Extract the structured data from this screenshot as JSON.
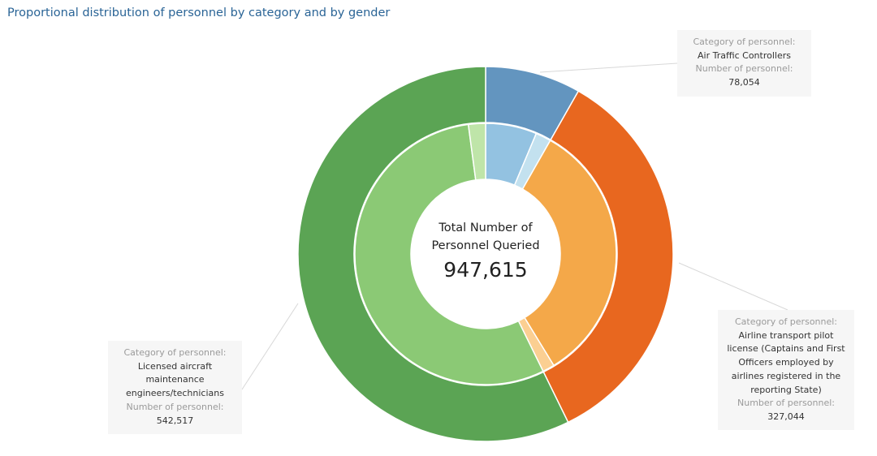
{
  "title": "Proportional distribution of personnel by category and by gender",
  "center": {
    "caption_line1": "Total Number of",
    "caption_line2": "Personnel Queried",
    "total": "947,615"
  },
  "tooltips": {
    "atc": {
      "category_label": "Category of personnel:",
      "category_lines": [
        "Air Traffic Controllers"
      ],
      "number_label": "Number of personnel:",
      "number": "78,054"
    },
    "atp": {
      "category_label": "Category of personnel:",
      "category_lines": [
        "Airline transport pilot",
        "license (Captains and First",
        "Officers employed by",
        "airlines registered in the",
        "reporting State)"
      ],
      "number_label": "Number of personnel:",
      "number": "327,044"
    },
    "ame": {
      "category_label": "Category of personnel:",
      "category_lines": [
        "Licensed aircraft",
        "maintenance",
        "engineers/technicians"
      ],
      "number_label": "Number of personnel:",
      "number": "542,517"
    }
  },
  "chart_data": {
    "type": "pie",
    "subtype": "nested-donut",
    "title": "Proportional distribution of personnel by category and by gender",
    "total": 947615,
    "outer_ring": [
      {
        "category": "Air Traffic Controllers",
        "value": 78054,
        "color": "#6395bf"
      },
      {
        "category": "Airline transport pilot license (Captains and First Officers employed by airlines registered in the reporting State)",
        "value": 327044,
        "color": "#e8671f"
      },
      {
        "category": "Licensed aircraft maintenance engineers/technicians",
        "value": 542517,
        "color": "#5ba454"
      }
    ],
    "inner_ring": [
      {
        "parent": "Air Traffic Controllers",
        "value": 60000,
        "color": "#93c2e1"
      },
      {
        "parent": "Air Traffic Controllers",
        "value": 18054,
        "color": "#c3e1ef"
      },
      {
        "parent": "Airline transport pilot license (Captains and First Officers employed by airlines registered in the reporting State)",
        "value": 313044,
        "color": "#f4a849"
      },
      {
        "parent": "Airline transport pilot license (Captains and First Officers employed by airlines registered in the reporting State)",
        "value": 14000,
        "color": "#fbcf92"
      },
      {
        "parent": "Licensed aircraft maintenance engineers/technicians",
        "value": 522517,
        "color": "#8bc975"
      },
      {
        "parent": "Licensed aircraft maintenance engineers/technicians",
        "value": 20000,
        "color": "#bfe5a9"
      }
    ]
  }
}
